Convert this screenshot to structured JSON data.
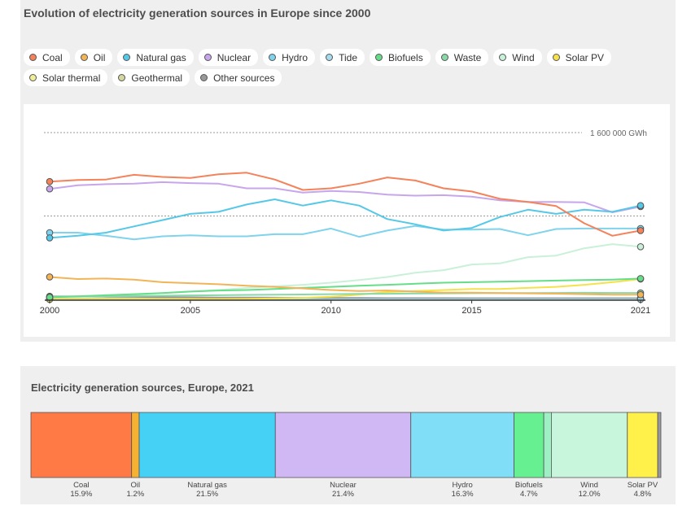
{
  "chart_data": [
    {
      "type": "line",
      "title": "Evolution of electricity generation sources in Europe since 2000",
      "x": [
        2000,
        2001,
        2002,
        2003,
        2004,
        2005,
        2006,
        2007,
        2008,
        2009,
        2010,
        2011,
        2012,
        2013,
        2014,
        2015,
        2016,
        2017,
        2018,
        2019,
        2020,
        2021
      ],
      "xticks": [
        "2000",
        "2005",
        "2010",
        "2015",
        "2021"
      ],
      "ylim": [
        0,
        1600000
      ],
      "gridlines": [
        800000,
        1600000
      ],
      "gridline_label": "1 600 000 GWh",
      "legend_position": "top",
      "series": [
        {
          "name": "Coal",
          "color": "#f4825a",
          "values": [
            1130000,
            1145000,
            1150000,
            1195000,
            1175000,
            1165000,
            1200000,
            1215000,
            1150000,
            1050000,
            1065000,
            1110000,
            1170000,
            1140000,
            1065000,
            1035000,
            965000,
            935000,
            895000,
            730000,
            610000,
            660000
          ]
        },
        {
          "name": "Oil",
          "color": "#f2b457",
          "values": [
            215000,
            195000,
            200000,
            190000,
            165000,
            155000,
            145000,
            130000,
            120000,
            105000,
            90000,
            80000,
            85000,
            75000,
            65000,
            65000,
            60000,
            58000,
            55000,
            50000,
            45000,
            45000
          ]
        },
        {
          "name": "Natural gas",
          "color": "#55c8e8",
          "values": [
            590000,
            610000,
            640000,
            700000,
            760000,
            820000,
            840000,
            910000,
            960000,
            900000,
            950000,
            900000,
            770000,
            720000,
            660000,
            685000,
            790000,
            860000,
            820000,
            860000,
            840000,
            900000
          ]
        },
        {
          "name": "Nuclear",
          "color": "#c7a6ec",
          "values": [
            1060000,
            1095000,
            1105000,
            1110000,
            1125000,
            1115000,
            1110000,
            1065000,
            1065000,
            1025000,
            1040000,
            1030000,
            1005000,
            995000,
            1000000,
            985000,
            950000,
            935000,
            935000,
            930000,
            835000,
            890000
          ]
        },
        {
          "name": "Hydro",
          "color": "#7fd3ec",
          "values": [
            640000,
            640000,
            610000,
            575000,
            605000,
            615000,
            605000,
            605000,
            625000,
            625000,
            680000,
            600000,
            660000,
            705000,
            670000,
            670000,
            675000,
            615000,
            675000,
            680000,
            680000,
            680000
          ]
        },
        {
          "name": "Tide",
          "color": "#a6dcec",
          "values": [
            0,
            0,
            0,
            0,
            0,
            0,
            0,
            0,
            0,
            0,
            0,
            0,
            0,
            0,
            0,
            0,
            0,
            0,
            0,
            0,
            0,
            0
          ]
        },
        {
          "name": "Biofuels",
          "color": "#66dd88",
          "values": [
            20000,
            30000,
            40000,
            50000,
            60000,
            75000,
            85000,
            90000,
            100000,
            110000,
            120000,
            130000,
            140000,
            150000,
            160000,
            165000,
            170000,
            175000,
            180000,
            185000,
            190000,
            200000
          ]
        },
        {
          "name": "Waste",
          "color": "#88d8a8",
          "values": [
            25000,
            28000,
            30000,
            32000,
            35000,
            38000,
            40000,
            43000,
            45000,
            47000,
            50000,
            52000,
            54000,
            56000,
            58000,
            59000,
            60000,
            61000,
            62000,
            63000,
            62000,
            62000
          ]
        },
        {
          "name": "Wind",
          "color": "#c9f0d8",
          "values": [
            20000,
            25000,
            35000,
            45000,
            60000,
            75000,
            90000,
            110000,
            125000,
            140000,
            160000,
            185000,
            215000,
            255000,
            280000,
            335000,
            345000,
            405000,
            420000,
            490000,
            530000,
            505000
          ]
        },
        {
          "name": "Solar PV",
          "color": "#f5e24a",
          "values": [
            0,
            0,
            0,
            0,
            0,
            2000,
            3000,
            5000,
            10000,
            15000,
            25000,
            45000,
            70000,
            80000,
            90000,
            100000,
            100000,
            110000,
            120000,
            140000,
            165000,
            195000
          ]
        },
        {
          "name": "Solar thermal",
          "color": "#eeee99",
          "values": [
            0,
            0,
            0,
            0,
            0,
            0,
            0,
            0,
            0,
            0,
            0,
            0,
            0,
            0,
            0,
            0,
            0,
            0,
            0,
            0,
            0,
            0
          ]
        },
        {
          "name": "Geothermal",
          "color": "#d6d6a0",
          "values": [
            8000,
            8000,
            8000,
            8000,
            8000,
            8000,
            8000,
            8000,
            8000,
            9000,
            9000,
            9000,
            9000,
            9000,
            9000,
            9000,
            9000,
            9000,
            9000,
            9000,
            9000,
            9000
          ]
        },
        {
          "name": "Other sources",
          "color": "#999999",
          "values": [
            30000,
            28000,
            26000,
            24000,
            22000,
            20000,
            18000,
            17000,
            16000,
            15000,
            14000,
            13000,
            12000,
            12000,
            12000,
            11000,
            11000,
            11000,
            11000,
            11000,
            11000,
            11000
          ]
        }
      ]
    },
    {
      "type": "bar",
      "orientation": "stacked-horizontal",
      "title": "Electricity generation sources, Europe, 2021",
      "unit": "%",
      "segments": [
        {
          "name": "Coal",
          "value": 15.9,
          "color": "#ff7a45",
          "label": "Coal",
          "value_label": "15.9%"
        },
        {
          "name": "Oil",
          "value": 1.2,
          "color": "#f5b133",
          "label": "Oil",
          "value_label": "1.2%"
        },
        {
          "name": "Natural gas",
          "value": 21.5,
          "color": "#45d0f6",
          "label": "Natural gas",
          "value_label": "21.5%"
        },
        {
          "name": "Nuclear",
          "value": 21.4,
          "color": "#d0b8f4",
          "label": "Nuclear",
          "value_label": "21.4%"
        },
        {
          "name": "Hydro",
          "value": 16.3,
          "color": "#80def6",
          "label": "Hydro",
          "value_label": "16.3%"
        },
        {
          "name": "Biofuels",
          "value": 4.7,
          "color": "#66f092",
          "label": "Biofuels",
          "value_label": "4.7%"
        },
        {
          "name": "Waste",
          "value": 1.2,
          "color": "#9ef0c4",
          "label": "",
          "value_label": ""
        },
        {
          "name": "Wind",
          "value": 12.0,
          "color": "#c8f6dc",
          "label": "Wind",
          "value_label": "12.0%"
        },
        {
          "name": "Solar PV",
          "value": 4.8,
          "color": "#fff04a",
          "label": "Solar PV",
          "value_label": "4.8%"
        },
        {
          "name": "Other sources",
          "value": 0.5,
          "color": "#999999",
          "label": "",
          "value_label": ""
        }
      ]
    }
  ]
}
